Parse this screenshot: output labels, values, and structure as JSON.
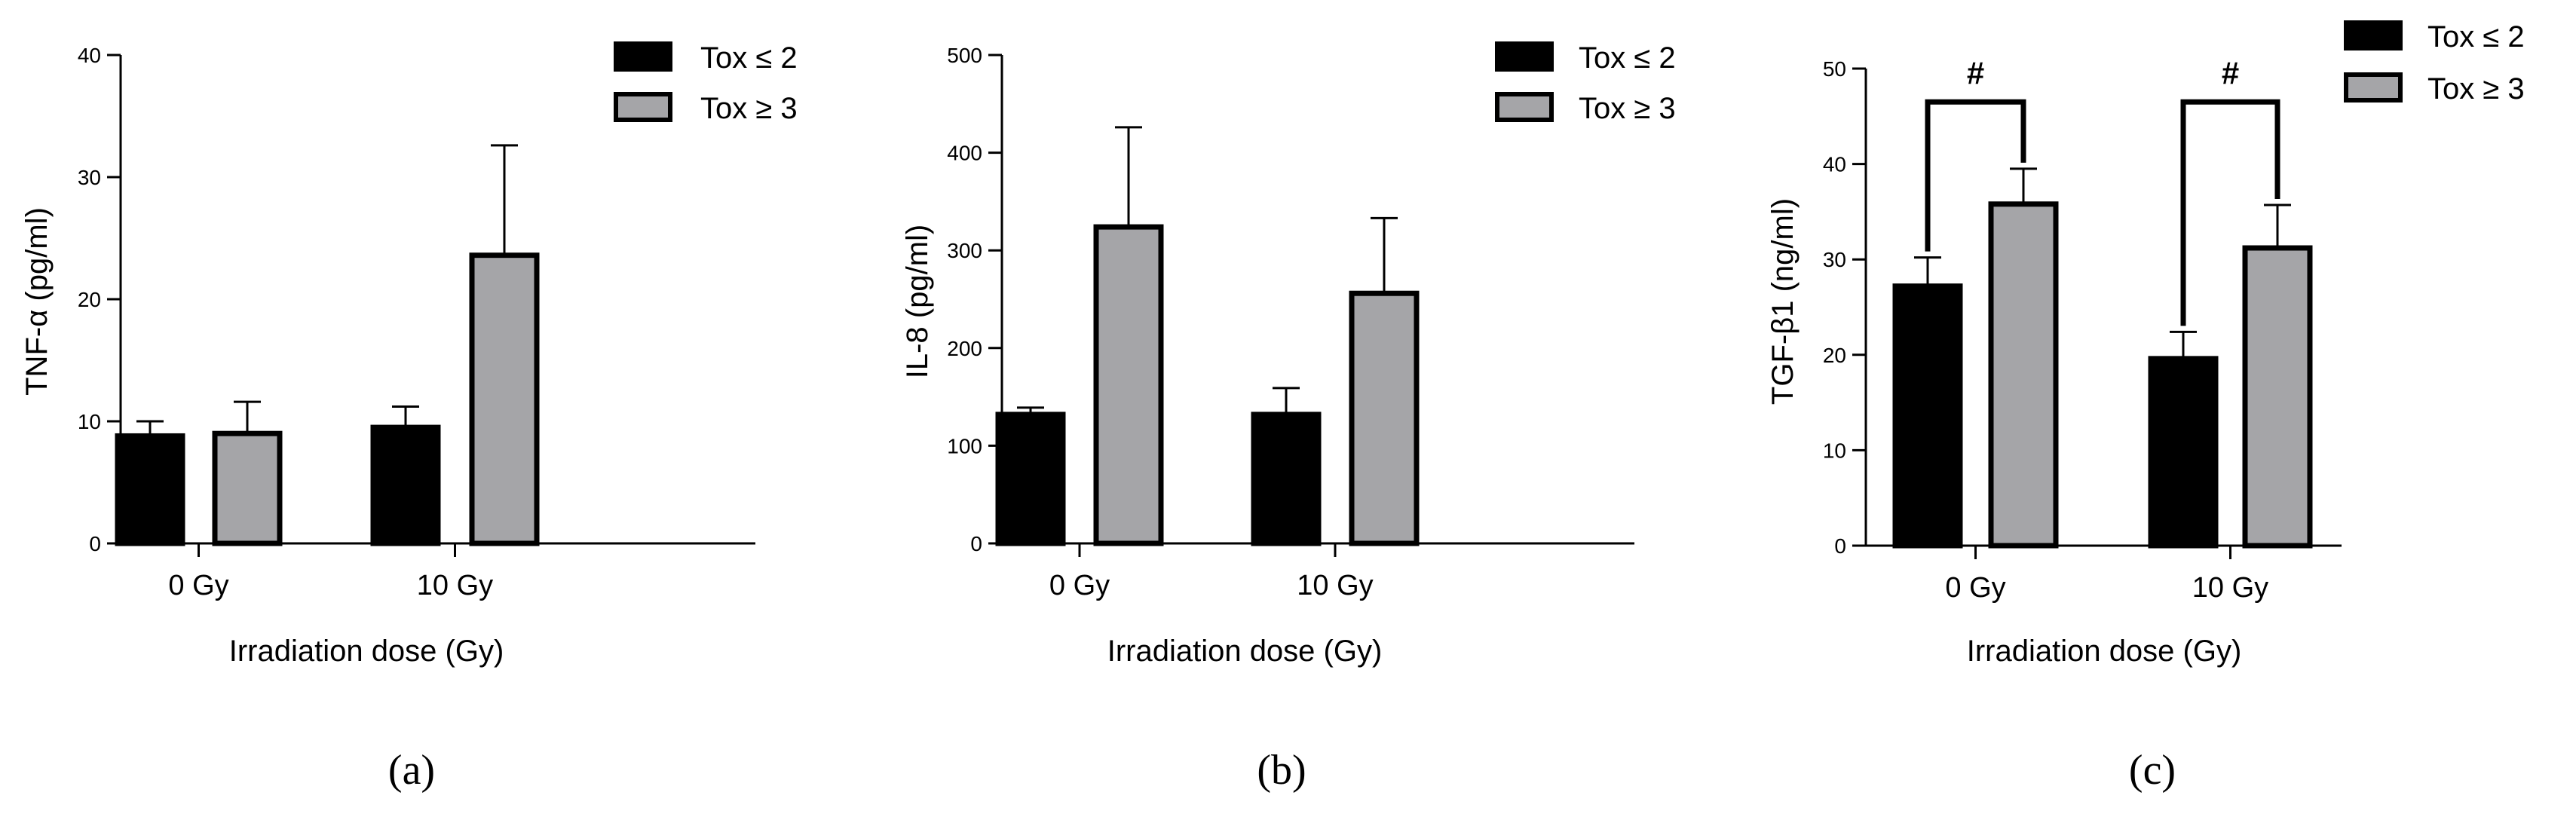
{
  "series_names": [
    "Tox ≤ 2",
    "Tox ≥ 3"
  ],
  "series_colors": [
    "#000000",
    "#a5a5a8"
  ],
  "chart_data": [
    {
      "type": "bar",
      "panel_label": "(a)",
      "title": "",
      "xlabel": "Irradiation dose (Gy)",
      "ylabel": "TNF-α (pg/ml)",
      "categories": [
        "0 Gy",
        "10 Gy"
      ],
      "ylim": [
        0,
        40
      ],
      "yticks": [
        0,
        10,
        20,
        30,
        40
      ],
      "series": [
        {
          "name": "Tox ≤ 2",
          "values": [
            8.8,
            9.5
          ],
          "errors": [
            1.2,
            1.7
          ]
        },
        {
          "name": "Tox ≥ 3",
          "values": [
            9.0,
            23.6
          ],
          "errors": [
            2.6,
            9.0
          ]
        }
      ],
      "significance": []
    },
    {
      "type": "bar",
      "panel_label": "(b)",
      "title": "",
      "xlabel": "Irradiation dose (Gy)",
      "ylabel": "IL-8 (pg/ml)",
      "categories": [
        "0 Gy",
        "10 Gy"
      ],
      "ylim": [
        0,
        500
      ],
      "yticks": [
        0,
        100,
        200,
        300,
        400,
        500
      ],
      "series": [
        {
          "name": "Tox ≤ 2",
          "values": [
            132,
            132
          ],
          "errors": [
            7,
            27
          ]
        },
        {
          "name": "Tox ≥ 3",
          "values": [
            324,
            256
          ],
          "errors": [
            102,
            77
          ]
        }
      ],
      "significance": []
    },
    {
      "type": "bar",
      "panel_label": "(c)",
      "title": "",
      "xlabel": "Irradiation dose (Gy)",
      "ylabel": "TGF-β1 (ng/ml)",
      "categories": [
        "0 Gy",
        "10 Gy"
      ],
      "ylim": [
        0,
        50
      ],
      "yticks": [
        0,
        10,
        20,
        30,
        40,
        50
      ],
      "series": [
        {
          "name": "Tox ≤ 2",
          "values": [
            27.2,
            19.6
          ],
          "errors": [
            3.0,
            2.8
          ]
        },
        {
          "name": "Tox ≥ 3",
          "values": [
            35.8,
            31.2
          ],
          "errors": [
            3.7,
            4.5
          ]
        }
      ],
      "significance": [
        {
          "category_index": 0,
          "label": "#",
          "bracket_y": 46.5
        },
        {
          "category_index": 1,
          "label": "#",
          "bracket_y": 46.5
        }
      ]
    }
  ]
}
